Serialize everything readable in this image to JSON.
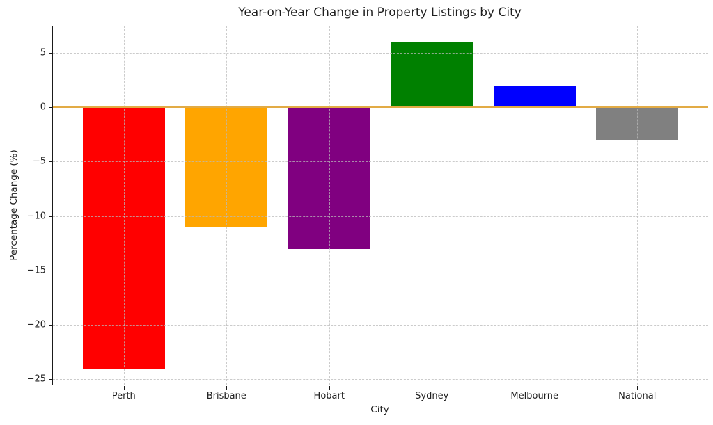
{
  "title": "Year-on-Year Change in Property Listings by City",
  "chart_data": {
    "type": "bar",
    "title": "Year-on-Year Change in Property Listings by City",
    "xlabel": "City",
    "ylabel": "Percentage Change (%)",
    "categories": [
      "Perth",
      "Brisbane",
      "Hobart",
      "Sydney",
      "Melbourne",
      "National"
    ],
    "values": [
      -24,
      -11,
      -13,
      6,
      2,
      -3
    ],
    "bar_colors": [
      "#ff0000",
      "#ffa500",
      "#800080",
      "#008000",
      "#0000ff",
      "#808080"
    ],
    "yticks": [
      5,
      0,
      -5,
      -10,
      -15,
      -20,
      -25
    ],
    "ylim": [
      -25.5,
      7.5
    ],
    "xlim": [
      -0.69,
      5.69
    ],
    "bar_width": 0.8,
    "grid": true,
    "grid_style": "dashed",
    "zero_line_value": 0,
    "zero_line_color": "#e2ab45",
    "axis_color": "#1a1a1a",
    "grid_color": "#b9b9b9",
    "background_color": "#ffffff"
  }
}
